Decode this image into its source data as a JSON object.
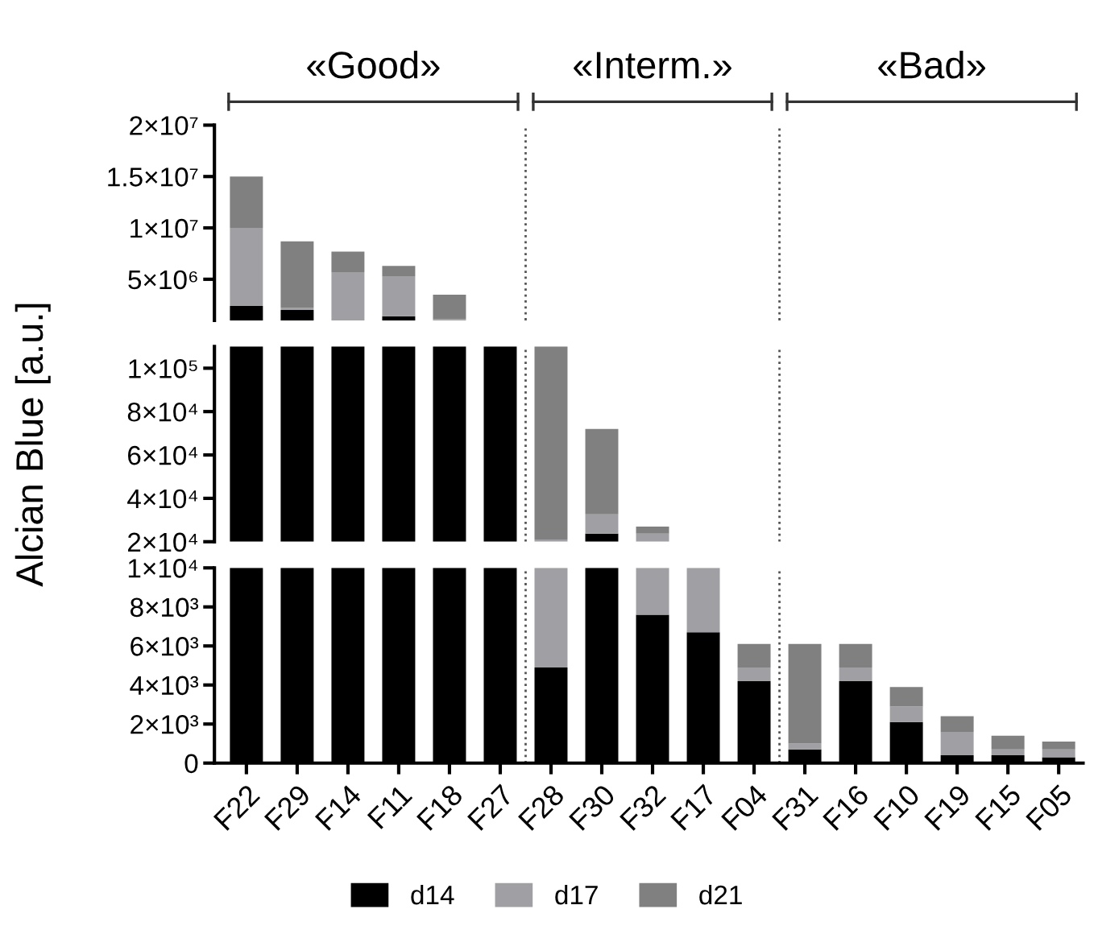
{
  "chart_data": [
    {
      "type": "bar",
      "ylabel": "Alcian Blue [a.u.]",
      "annotations": [
        "«Good»",
        "«Interm.»",
        "«Bad»"
      ],
      "categories": [
        "F22",
        "F29",
        "F14",
        "F11",
        "F18",
        "F27",
        "F28",
        "F30",
        "F32",
        "F17",
        "F04",
        "F31",
        "F16",
        "F10",
        "F19",
        "F15",
        "F05"
      ],
      "tick_labels": "y",
      "ylim": [
        1000000,
        20000000
      ],
      "yticks": [
        {
          "value": 5000000,
          "label": "5×10⁶"
        },
        {
          "value": 10000000,
          "label": "1×10⁷"
        },
        {
          "value": 15000000,
          "label": "1.5×10⁷"
        },
        {
          "value": 20000000,
          "label": "2×10⁷"
        }
      ],
      "series": [
        {
          "color": "#000000",
          "base": [
            1000000,
            1000000,
            null,
            1000000,
            null,
            null,
            null,
            null,
            null,
            null,
            null,
            null,
            null,
            null,
            null,
            null,
            null
          ],
          "values": [
            1400000,
            1000000,
            null,
            400000,
            null,
            null,
            null,
            null,
            null,
            null,
            null,
            null,
            null,
            null,
            null,
            null,
            null
          ]
        },
        {
          "color": "#a0a0a4",
          "base": [
            2400000,
            2000000,
            1000000,
            1400000,
            1000000,
            null,
            null,
            null,
            null,
            null,
            null,
            null,
            null,
            null,
            null,
            null,
            null
          ],
          "values": [
            7600000,
            200000,
            4700000,
            3900000,
            100000,
            null,
            null,
            null,
            null,
            null,
            null,
            null,
            null,
            null,
            null,
            null,
            null
          ]
        },
        {
          "color": "#808080",
          "base": [
            10000000,
            2200000,
            5700000,
            5300000,
            1100000,
            null,
            null,
            null,
            null,
            null,
            null,
            null,
            null,
            null,
            null,
            null,
            null
          ],
          "values": [
            5000000,
            6500000,
            2000000,
            1000000,
            2400000,
            null,
            null,
            null,
            null,
            null,
            null,
            null,
            null,
            null,
            null,
            null,
            null
          ]
        }
      ]
    },
    {
      "type": "bar",
      "categories": [
        "F22",
        "F29",
        "F14",
        "F11",
        "F18",
        "F27",
        "F28",
        "F30",
        "F32",
        "F17",
        "F04",
        "F31",
        "F16",
        "F10",
        "F19",
        "F15",
        "F05"
      ],
      "tick_labels": "y",
      "ylim": [
        20000,
        110000
      ],
      "yticks": [
        {
          "value": 20000,
          "label": "2×10⁴"
        },
        {
          "value": 40000,
          "label": "4×10⁴"
        },
        {
          "value": 60000,
          "label": "6×10⁴"
        },
        {
          "value": 80000,
          "label": "8×10⁴"
        },
        {
          "value": 100000,
          "label": "1×10⁵"
        }
      ],
      "series": [
        {
          "color": "#000000",
          "base": [
            20000,
            20000,
            20000,
            20000,
            20000,
            20000,
            null,
            20000,
            null,
            null,
            null,
            null,
            null,
            null,
            null,
            null,
            null
          ],
          "values": [
            90000,
            90000,
            90000,
            90000,
            90000,
            90000,
            null,
            3700,
            null,
            null,
            null,
            null,
            null,
            null,
            null,
            null,
            null
          ]
        },
        {
          "color": "#a0a0a4",
          "base": [
            null,
            null,
            null,
            null,
            null,
            null,
            20000,
            23700,
            20000,
            null,
            null,
            null,
            null,
            null,
            null,
            null,
            null
          ],
          "values": [
            null,
            null,
            null,
            null,
            null,
            null,
            1000,
            8900,
            3700,
            null,
            null,
            null,
            null,
            null,
            null,
            null,
            null
          ]
        },
        {
          "color": "#808080",
          "base": [
            null,
            null,
            null,
            null,
            null,
            null,
            21000,
            32600,
            23700,
            null,
            null,
            null,
            null,
            null,
            null,
            null,
            null
          ],
          "values": [
            null,
            null,
            null,
            null,
            null,
            null,
            89000,
            39400,
            3300,
            null,
            null,
            null,
            null,
            null,
            null,
            null,
            null
          ]
        }
      ]
    },
    {
      "type": "bar",
      "categories": [
        "F22",
        "F29",
        "F14",
        "F11",
        "F18",
        "F27",
        "F28",
        "F30",
        "F32",
        "F17",
        "F04",
        "F31",
        "F16",
        "F10",
        "F19",
        "F15",
        "F05"
      ],
      "ylim": [
        0,
        10000
      ],
      "yticks": [
        0,
        {
          "value": 2000,
          "label": "2×10³"
        },
        {
          "value": 4000,
          "label": "4×10³"
        },
        {
          "value": 6000,
          "label": "6×10³"
        },
        {
          "value": 8000,
          "label": "8×10³"
        },
        {
          "value": 10000,
          "label": "1×10⁴"
        }
      ],
      "legend": "bottom",
      "series": [
        {
          "name": "d14",
          "color": "#000000",
          "base": [
            0,
            0,
            0,
            0,
            0,
            0,
            0,
            0,
            0,
            0,
            0,
            0,
            0,
            0,
            0,
            0,
            0
          ],
          "values": [
            10000,
            10000,
            10000,
            10000,
            10000,
            10000,
            4900,
            10000,
            7600,
            6700,
            4200,
            700,
            4200,
            2100,
            400,
            400,
            300
          ]
        },
        {
          "name": "d17",
          "color": "#a0a0a4",
          "base": [
            null,
            null,
            null,
            null,
            null,
            null,
            4900,
            null,
            7600,
            6700,
            4200,
            700,
            4200,
            2100,
            400,
            400,
            300
          ],
          "values": [
            null,
            null,
            null,
            null,
            null,
            null,
            5100,
            null,
            2400,
            3300,
            700,
            300,
            700,
            800,
            1200,
            300,
            400
          ]
        },
        {
          "name": "d21",
          "color": "#808080",
          "base": [
            null,
            null,
            null,
            null,
            null,
            null,
            null,
            null,
            null,
            null,
            4900,
            1000,
            4900,
            2900,
            1600,
            700,
            700
          ],
          "values": [
            null,
            null,
            null,
            null,
            null,
            null,
            null,
            null,
            null,
            null,
            1200,
            5100,
            1200,
            1000,
            800,
            700,
            400
          ]
        }
      ]
    }
  ]
}
